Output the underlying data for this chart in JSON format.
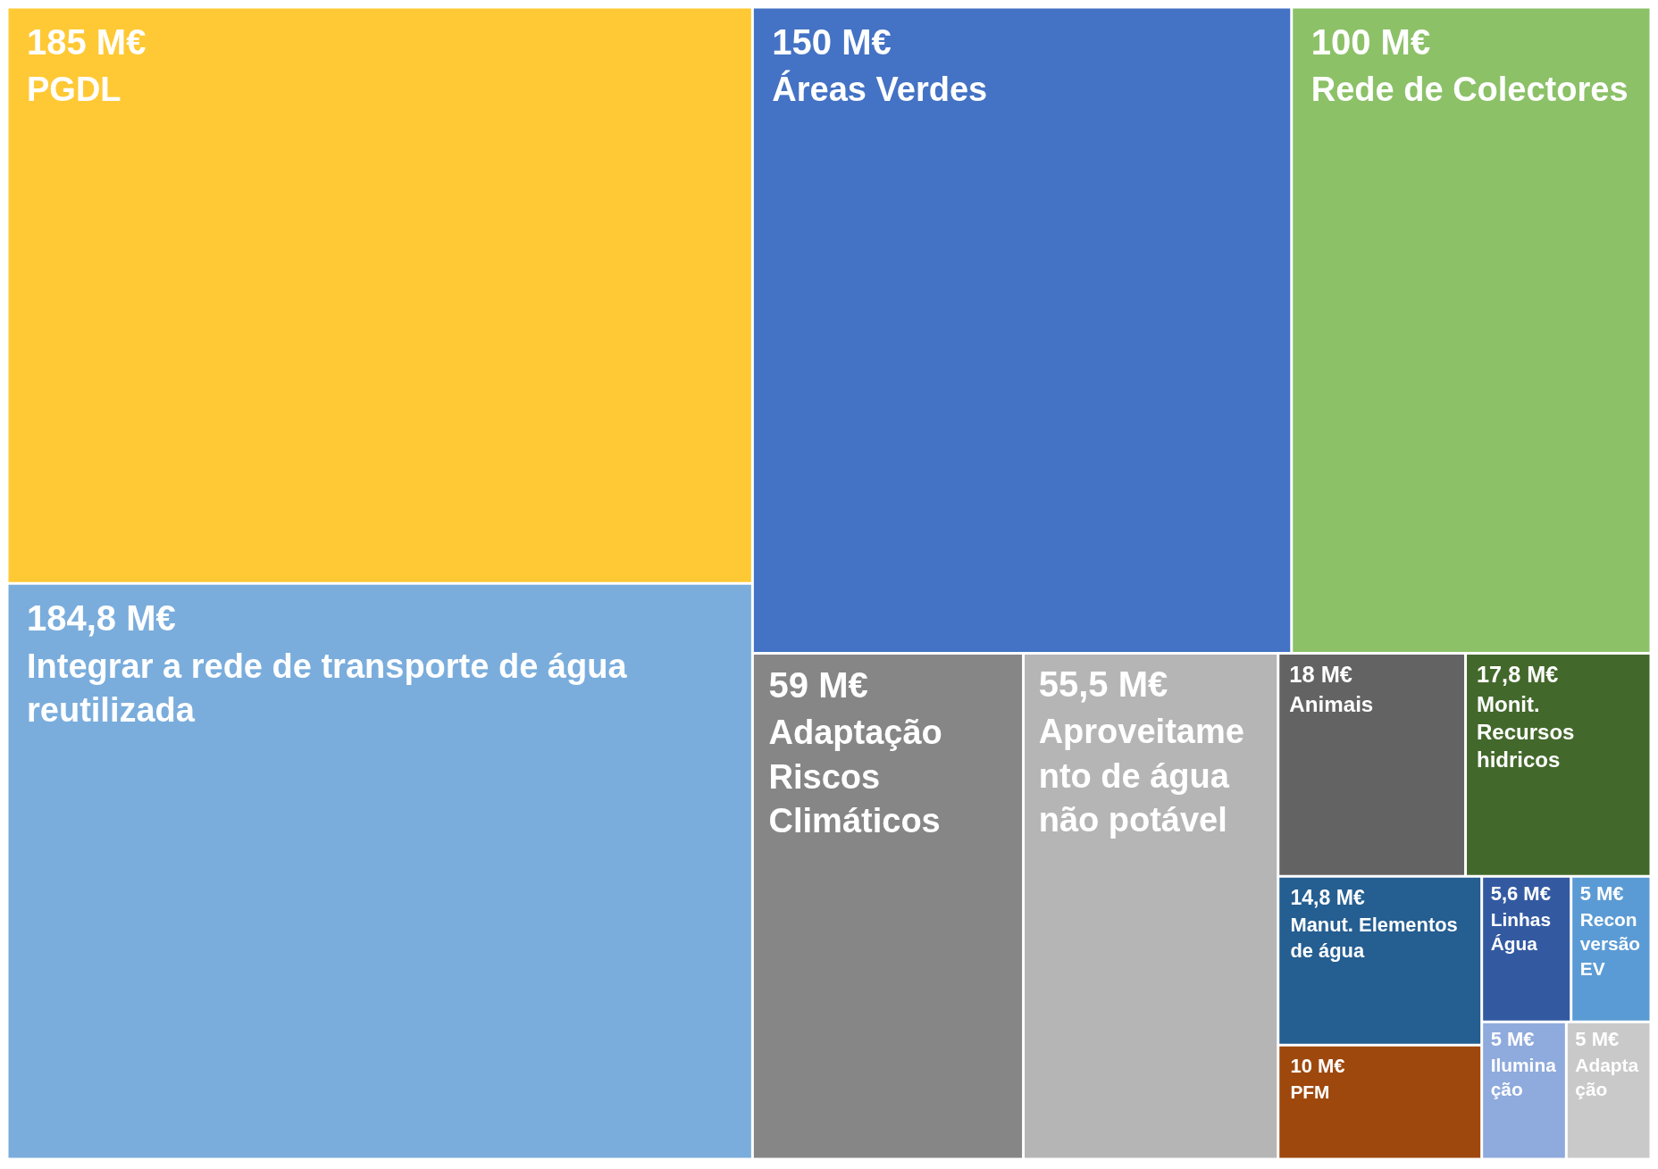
{
  "chart_data": {
    "type": "other",
    "categories": [
      "PGDL",
      "Integrar a rede de transporte de água reutilizada",
      "Áreas Verdes",
      "Rede de Colectores",
      "Adaptação Riscos Climáticos",
      "Aproveitamento de água não potável",
      "Animais",
      "Monit. Recursos hidricos",
      "Manut. Elementos de água",
      "PFM",
      "Linhas Água",
      "Reconversão EV",
      "Iluminação",
      "Adaptação"
    ],
    "values": [
      185,
      184.8,
      150,
      100,
      59,
      55.5,
      18,
      17.8,
      14.8,
      10,
      5.6,
      5,
      5,
      5
    ],
    "value_labels": [
      "185 M€",
      "184,8 M€",
      "150 M€",
      "100 M€",
      "59 M€",
      "55,5 M€",
      "18 M€",
      "17,8 M€",
      "14,8 M€",
      "10 M€",
      "5,6 M€",
      "5 M€",
      "5 M€",
      "5 M€"
    ],
    "colors": [
      "#ffc935",
      "#7aaddc",
      "#4472c4",
      "#8cc168",
      "#868686",
      "#b5b5b5",
      "#636363",
      "#43682b",
      "#255e91",
      "#9e480e",
      "#335aa1",
      "#5b9bd5",
      "#8faadc",
      "#c9c9c9"
    ]
  }
}
